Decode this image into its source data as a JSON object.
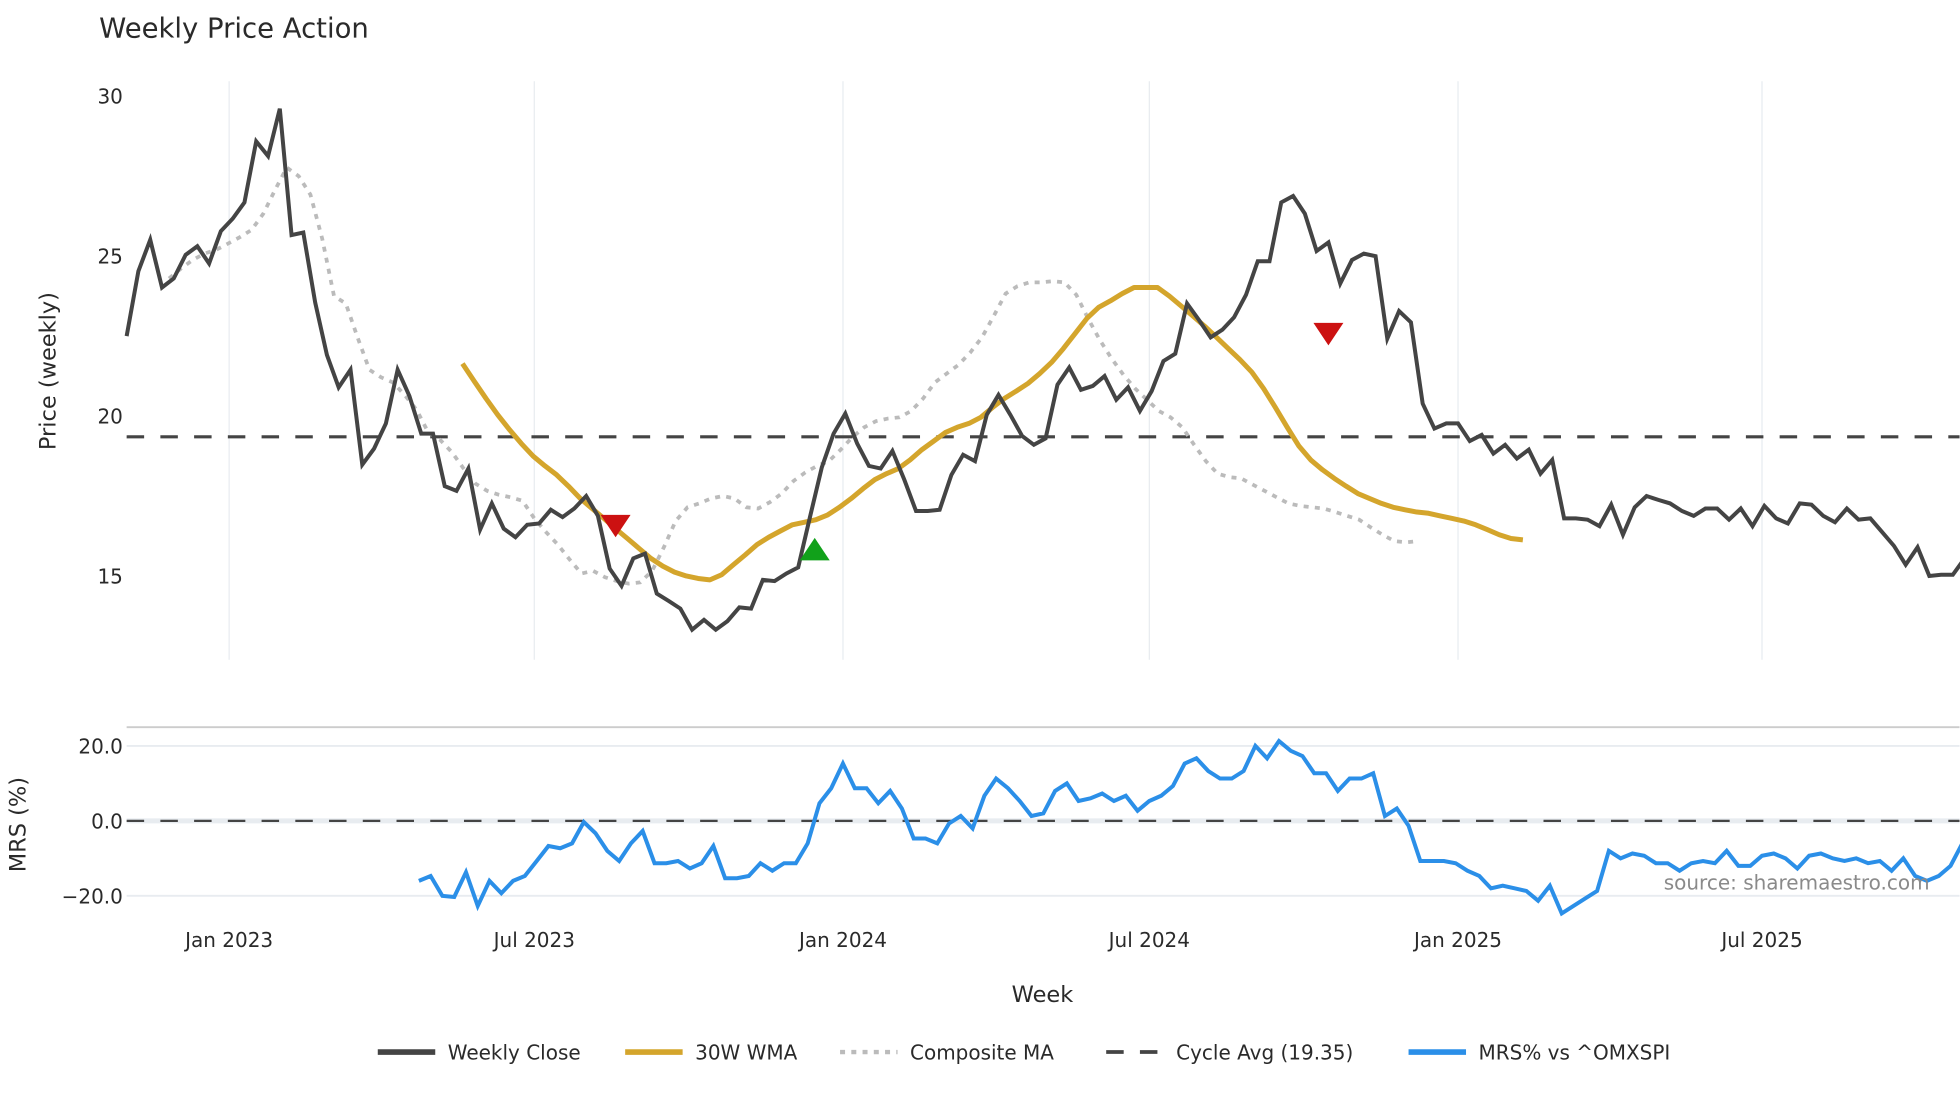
{
  "chart_data": {
    "type": "line",
    "title": "Weekly Price Action",
    "xlabel": "Week",
    "panels": [
      {
        "name": "price",
        "ylabel": "Price (weekly)",
        "ylim": [
          12.3,
          31.4
        ],
        "yticks": [
          15,
          20,
          25,
          30
        ],
        "grid": true
      },
      {
        "name": "mrs",
        "ylabel": "MRS (%)",
        "ylim": [
          -26,
          26.5
        ],
        "yticks": [
          -20.0,
          0.0,
          20.0
        ],
        "ytick_labels": [
          "−20.0",
          "0.0",
          "20.0"
        ],
        "grid": true
      }
    ],
    "x_ticks": [
      {
        "label": "Jan 2023",
        "week": 8.7
      },
      {
        "label": "Jul 2023",
        "week": 34.6
      },
      {
        "label": "Jan 2024",
        "week": 60.8
      },
      {
        "label": "Jul 2024",
        "week": 86.8
      },
      {
        "label": "Jan 2025",
        "week": 113.0
      },
      {
        "label": "Jul 2025",
        "week": 138.8
      }
    ],
    "x_range_weeks": [
      0,
      155.6
    ],
    "series": [
      {
        "name": "Weekly Close",
        "panel": "price",
        "color": "#444444",
        "style": "solid",
        "start_week": 0,
        "values": [
          22.5,
          24.53,
          25.51,
          24.02,
          24.3,
          25.04,
          25.31,
          24.77,
          25.78,
          26.17,
          26.68,
          28.59,
          28.13,
          29.61,
          25.66,
          25.74,
          23.55,
          21.91,
          20.9,
          21.45,
          18.48,
          18.98,
          19.77,
          21.45,
          20.63,
          19.45,
          19.45,
          17.81,
          17.66,
          18.36,
          16.45,
          17.27,
          16.48,
          16.21,
          16.6,
          16.64,
          17.07,
          16.84,
          17.11,
          17.5,
          16.88,
          15.23,
          14.69,
          15.55,
          15.7,
          14.45,
          14.22,
          13.98,
          13.32,
          13.63,
          13.32,
          13.59,
          14.02,
          13.98,
          14.88,
          14.84,
          15.08,
          15.27,
          16.84,
          18.4,
          19.45,
          20.08,
          19.14,
          18.44,
          18.36,
          18.91,
          18.01,
          17.03,
          17.03,
          17.07,
          18.16,
          18.79,
          18.59,
          20.04,
          20.66,
          20.04,
          19.38,
          19.1,
          19.3,
          20.98,
          21.52,
          20.82,
          20.94,
          21.25,
          20.51,
          20.9,
          20.16,
          20.78,
          21.72,
          21.95,
          23.52,
          23.01,
          22.46,
          22.7,
          23.09,
          23.79,
          24.84,
          24.84,
          26.68,
          26.88,
          26.33,
          25.16,
          25.43,
          24.14,
          24.88,
          25.08,
          25.0,
          22.42,
          23.28,
          22.93,
          20.39,
          19.61,
          19.77,
          19.77,
          19.22,
          19.41,
          18.83,
          19.1,
          18.67,
          18.95,
          18.2,
          18.63,
          16.8,
          16.8,
          16.76,
          16.56,
          17.23,
          16.29,
          17.15,
          17.5,
          17.38,
          17.27,
          17.03,
          16.88,
          17.11,
          17.11,
          16.76,
          17.11,
          16.56,
          17.19,
          16.8,
          16.64,
          17.27,
          17.23,
          16.88,
          16.68,
          17.11,
          16.76,
          16.8,
          16.37,
          15.94,
          15.35,
          15.9,
          15.0,
          15.04,
          15.04,
          15.55,
          16.48
        ]
      },
      {
        "name": "30W WMA",
        "panel": "price",
        "color": "#D4A52C",
        "style": "solid",
        "start_week": 28.5,
        "values": [
          21.64,
          21.09,
          20.55,
          20.04,
          19.57,
          19.14,
          18.75,
          18.44,
          18.16,
          17.81,
          17.42,
          17.11,
          16.8,
          16.48,
          16.17,
          15.86,
          15.55,
          15.31,
          15.12,
          15.0,
          14.92,
          14.88,
          15.04,
          15.35,
          15.66,
          15.98,
          16.21,
          16.41,
          16.6,
          16.68,
          16.76,
          16.91,
          17.15,
          17.42,
          17.73,
          18.01,
          18.2,
          18.36,
          18.63,
          18.95,
          19.22,
          19.49,
          19.65,
          19.77,
          19.96,
          20.27,
          20.55,
          20.78,
          21.02,
          21.33,
          21.68,
          22.11,
          22.58,
          23.05,
          23.4,
          23.6,
          23.83,
          24.02,
          24.02,
          24.02,
          23.75,
          23.44,
          23.13,
          22.81,
          22.46,
          22.11,
          21.76,
          21.37,
          20.86,
          20.27,
          19.65,
          19.06,
          18.63,
          18.32,
          18.05,
          17.81,
          17.58,
          17.42,
          17.27,
          17.15,
          17.07,
          17.0,
          16.96,
          16.88,
          16.8,
          16.72,
          16.6,
          16.45,
          16.29,
          16.17,
          16.13
        ]
      },
      {
        "name": "Composite MA",
        "panel": "price",
        "color": "#BBBBBB",
        "style": "dotted",
        "start_week": 3.6,
        "values": [
          24.3,
          24.61,
          24.88,
          25.08,
          25.2,
          25.39,
          25.59,
          25.82,
          26.33,
          27.07,
          27.77,
          27.5,
          26.92,
          25.55,
          23.75,
          23.52,
          22.46,
          21.45,
          21.21,
          21.05,
          20.66,
          20.2,
          19.49,
          19.26,
          18.87,
          18.36,
          17.89,
          17.66,
          17.54,
          17.46,
          17.35,
          16.8,
          16.37,
          15.98,
          15.51,
          15.08,
          15.16,
          14.96,
          14.84,
          14.76,
          14.8,
          15.16,
          15.9,
          16.72,
          17.15,
          17.27,
          17.42,
          17.5,
          17.42,
          17.15,
          17.11,
          17.31,
          17.58,
          17.97,
          18.24,
          18.44,
          18.59,
          18.95,
          19.34,
          19.65,
          19.84,
          19.92,
          19.96,
          20.16,
          20.55,
          21.05,
          21.33,
          21.6,
          21.99,
          22.46,
          23.13,
          23.83,
          24.06,
          24.18,
          24.18,
          24.22,
          24.18,
          23.79,
          23.05,
          22.38,
          21.8,
          21.29,
          20.86,
          20.51,
          20.16,
          19.96,
          19.65,
          19.1,
          18.59,
          18.2,
          18.09,
          18.05,
          17.85,
          17.66,
          17.46,
          17.27,
          17.19,
          17.15,
          17.11,
          17.0,
          16.88,
          16.76,
          16.52,
          16.29,
          16.09,
          16.05,
          16.09
        ]
      },
      {
        "name": "Cycle Avg (19.35)",
        "panel": "price",
        "color": "#444444",
        "style": "dashed",
        "constant": 19.35
      },
      {
        "name": "MRS% vs ^OMXSPI",
        "panel": "mrs",
        "color": "#2B8FE8",
        "style": "solid",
        "start_week": 24.8,
        "values": [
          -16.0,
          -14.7,
          -20.0,
          -20.3,
          -13.7,
          -22.7,
          -16.0,
          -19.3,
          -16.0,
          -14.7,
          -10.7,
          -6.7,
          -7.3,
          -6.0,
          -0.3,
          -3.3,
          -8.0,
          -10.7,
          -6.0,
          -2.7,
          -11.3,
          -11.3,
          -10.7,
          -12.7,
          -11.3,
          -6.7,
          -15.3,
          -15.3,
          -14.7,
          -11.3,
          -13.3,
          -11.3,
          -11.3,
          -6.0,
          4.7,
          8.7,
          15.3,
          8.7,
          8.7,
          4.7,
          8.0,
          3.3,
          -4.7,
          -4.7,
          -6.0,
          -0.7,
          1.3,
          -2.0,
          6.7,
          11.3,
          8.7,
          5.3,
          1.3,
          2.0,
          8.0,
          10.0,
          5.3,
          6.0,
          7.3,
          5.3,
          6.7,
          2.7,
          5.3,
          6.7,
          9.3,
          15.3,
          16.7,
          13.3,
          11.3,
          11.3,
          13.3,
          20.0,
          16.7,
          21.3,
          18.7,
          17.3,
          12.7,
          12.7,
          8.0,
          11.3,
          11.3,
          12.7,
          1.3,
          3.3,
          -1.3,
          -10.7,
          -10.7,
          -10.7,
          -11.3,
          -13.3,
          -14.7,
          -18.0,
          -17.3,
          -18.0,
          -18.7,
          -21.3,
          -17.3,
          -24.7,
          -22.7,
          -20.7,
          -18.7,
          -8.0,
          -10.0,
          -8.7,
          -9.3,
          -11.3,
          -11.3,
          -13.3,
          -11.3,
          -10.7,
          -11.3,
          -8.0,
          -12.0,
          -12.0,
          -9.3,
          -8.7,
          -10.0,
          -12.7,
          -9.3,
          -8.7,
          -10.0,
          -10.7,
          -10.0,
          -11.3,
          -10.7,
          -13.3,
          -10.0,
          -14.7,
          -16.0,
          -14.7,
          -12.0,
          -6.0,
          -6.7
        ]
      }
    ],
    "markers": [
      {
        "type": "sell",
        "shape": "triangle-down",
        "color": "#CC1111",
        "week": 41.5,
        "price": 16.6
      },
      {
        "type": "buy",
        "shape": "triangle-up",
        "color": "#11A11A",
        "week": 58.4,
        "price": 15.8
      },
      {
        "type": "sell",
        "shape": "triangle-down",
        "color": "#CC1111",
        "week": 102.0,
        "price": 22.6
      }
    ],
    "legend": {
      "position": "bottom",
      "items": [
        {
          "label": "Weekly Close",
          "color": "#444444",
          "style": "solid"
        },
        {
          "label": "30W WMA",
          "color": "#D4A52C",
          "style": "solid"
        },
        {
          "label": "Composite MA",
          "color": "#BBBBBB",
          "style": "dotted"
        },
        {
          "label": "Cycle Avg (19.35)",
          "color": "#444444",
          "style": "dashed"
        },
        {
          "label": "MRS% vs ^OMXSPI",
          "color": "#2B8FE8",
          "style": "solid"
        }
      ]
    },
    "annotations": [
      {
        "text": "source: sharemaestro.com",
        "panel": "mrs"
      }
    ]
  },
  "labels": {
    "title": "Weekly Price Action",
    "price_ylabel": "Price (weekly)",
    "mrs_ylabel": "MRS (%)",
    "xlabel": "Week",
    "source": "source: sharemaestro.com"
  }
}
